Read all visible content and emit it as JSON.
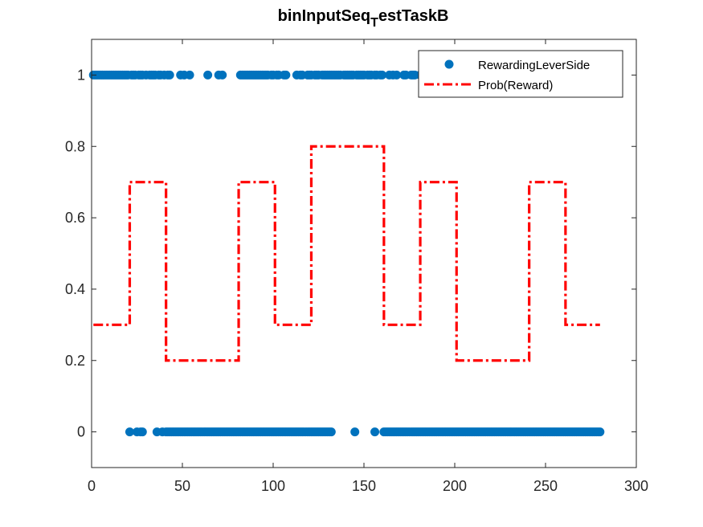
{
  "chart_data": {
    "type": "scatter",
    "title": "binInputSeq",
    "title_subscript": "T",
    "title_suffix": "estTaskB",
    "xlabel": "",
    "ylabel": "",
    "xlim": [
      0,
      300
    ],
    "ylim": [
      -0.1,
      1.1
    ],
    "x_ticks": [
      "0",
      "50",
      "100",
      "150",
      "200",
      "250",
      "300"
    ],
    "y_ticks": [
      "0",
      "0.2",
      "0.4",
      "0.6",
      "0.8",
      "1"
    ],
    "x_tick_values": [
      0,
      50,
      100,
      150,
      200,
      250,
      300
    ],
    "y_tick_values": [
      0,
      0.2,
      0.4,
      0.6,
      0.8,
      1
    ],
    "grid": false,
    "legend_position": "top-right",
    "colors": {
      "points": "#0072BD",
      "line": "#FF0000",
      "axes": "#262626"
    },
    "series": [
      {
        "name": "RewardingLeverSide",
        "type": "scatter",
        "ones_x": [
          1,
          2,
          3,
          4,
          5,
          6,
          7,
          8,
          9,
          10,
          11,
          12,
          13,
          14,
          15,
          16,
          17,
          18,
          19,
          20,
          22,
          23,
          24,
          26,
          27,
          28,
          30,
          32,
          33,
          34,
          35,
          37,
          38,
          40,
          42,
          43,
          49,
          51,
          54,
          64,
          70,
          72,
          82,
          83,
          84,
          85,
          86,
          87,
          88,
          89,
          90,
          91,
          92,
          93,
          94,
          95,
          96,
          97,
          99,
          100,
          102,
          103,
          106,
          107,
          113,
          115,
          116,
          119,
          120,
          121,
          123,
          124,
          125,
          127,
          128,
          129,
          130,
          131,
          132,
          133,
          134,
          135,
          136,
          137,
          139,
          140,
          141,
          142,
          143,
          144,
          146,
          147,
          148,
          149,
          150,
          152,
          153,
          154,
          156,
          157,
          159,
          160,
          164,
          166,
          168,
          172,
          173,
          176,
          177,
          178,
          181,
          182,
          183,
          184,
          186,
          188,
          189,
          190,
          191,
          192,
          193,
          194,
          195,
          196,
          197,
          198,
          199,
          200
        ],
        "zeros_x": [
          21,
          25,
          27,
          28,
          36,
          39,
          41,
          42,
          43,
          44,
          45,
          46,
          47,
          48,
          49,
          50,
          51,
          52,
          53,
          54,
          55,
          56,
          57,
          58,
          59,
          60,
          61,
          62,
          63,
          64,
          65,
          66,
          67,
          68,
          69,
          70,
          71,
          72,
          73,
          74,
          75,
          76,
          77,
          78,
          79,
          80,
          81,
          82,
          83,
          84,
          85,
          86,
          87,
          88,
          89,
          90,
          91,
          92,
          93,
          94,
          95,
          96,
          97,
          98,
          99,
          100,
          101,
          102,
          103,
          104,
          105,
          106,
          107,
          108,
          109,
          110,
          111,
          112,
          113,
          114,
          115,
          116,
          117,
          118,
          119,
          120,
          121,
          122,
          123,
          124,
          125,
          126,
          127,
          128,
          129,
          130,
          131,
          132,
          145,
          156,
          161,
          162,
          163,
          164,
          165,
          166,
          167,
          168,
          169,
          170,
          171,
          172,
          173,
          174,
          175,
          176,
          177,
          178,
          179,
          180,
          181,
          182,
          183,
          184,
          185,
          186,
          187,
          188,
          189,
          190,
          191,
          192,
          193,
          194,
          195,
          196,
          197,
          198,
          199,
          200,
          201,
          202,
          203,
          204,
          205,
          206,
          207,
          208,
          209,
          210,
          211,
          212,
          213,
          214,
          215,
          216,
          217,
          218,
          219,
          220,
          221,
          222,
          223,
          224,
          225,
          226,
          227,
          228,
          229,
          230,
          231,
          232,
          233,
          234,
          235,
          236,
          237,
          238,
          239,
          240,
          241,
          242,
          243,
          244,
          245,
          246,
          247,
          248,
          249,
          250,
          251,
          252,
          253,
          254,
          255,
          256,
          257,
          258,
          259,
          260,
          261,
          262,
          263,
          264,
          265,
          266,
          267,
          268,
          269,
          270,
          271,
          272,
          273,
          274,
          275,
          276,
          277,
          278,
          279,
          280
        ]
      },
      {
        "name": "Prob(Reward)",
        "type": "step",
        "segments": [
          {
            "x_start": 1,
            "x_end": 21,
            "y": 0.3
          },
          {
            "x_start": 21,
            "x_end": 41,
            "y": 0.7
          },
          {
            "x_start": 41,
            "x_end": 81,
            "y": 0.2
          },
          {
            "x_start": 81,
            "x_end": 101,
            "y": 0.7
          },
          {
            "x_start": 101,
            "x_end": 121,
            "y": 0.3
          },
          {
            "x_start": 121,
            "x_end": 161,
            "y": 0.8
          },
          {
            "x_start": 161,
            "x_end": 181,
            "y": 0.3
          },
          {
            "x_start": 181,
            "x_end": 201,
            "y": 0.7
          },
          {
            "x_start": 201,
            "x_end": 241,
            "y": 0.2
          },
          {
            "x_start": 241,
            "x_end": 261,
            "y": 0.7
          },
          {
            "x_start": 261,
            "x_end": 280,
            "y": 0.3
          }
        ]
      }
    ]
  }
}
